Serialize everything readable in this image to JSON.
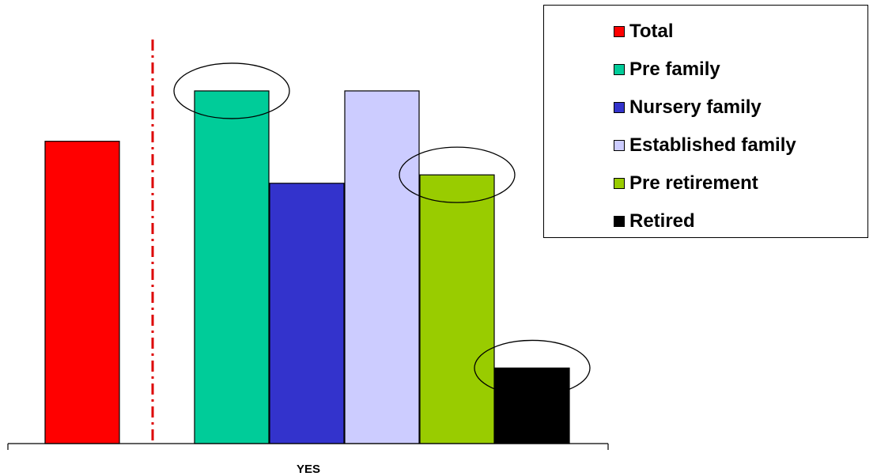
{
  "chart_data": {
    "type": "bar",
    "categories": [
      "YES"
    ],
    "series": [
      {
        "name": "Total",
        "value": 72,
        "color": "#ff0000"
      },
      {
        "name": "Pre family",
        "value": 84,
        "color": "#00cc99"
      },
      {
        "name": "Nursery family",
        "value": 62,
        "color": "#3333cc"
      },
      {
        "name": "Established family",
        "value": 84,
        "color": "#ccccff"
      },
      {
        "name": "Pre retirement",
        "value": 64,
        "color": "#99cc00"
      },
      {
        "name": "Retired",
        "value": 18,
        "color": "#000000"
      }
    ],
    "highlighted_series": [
      "Pre family",
      "Pre retirement",
      "Retired"
    ],
    "separator_after_series": "Total",
    "separator_color": "#dd0000",
    "legend_position": "top-right",
    "ylim": [
      0,
      100
    ],
    "grid": false,
    "title": "",
    "ylabel": ""
  }
}
